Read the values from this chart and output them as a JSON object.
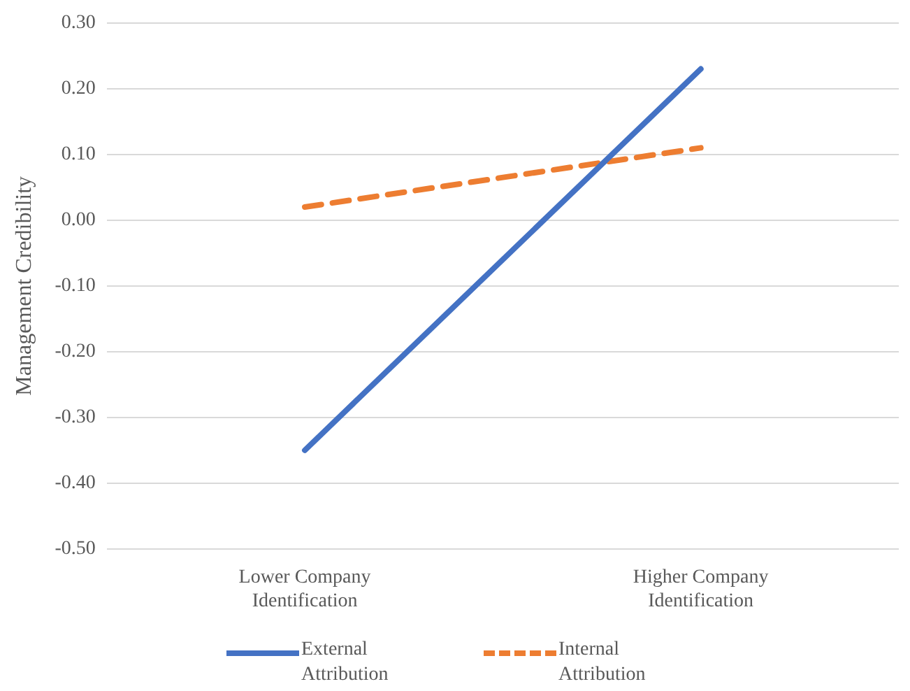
{
  "chart_data": {
    "type": "line",
    "ylabel": "Management Credibility",
    "categories": [
      "Lower Company Identification",
      "Higher Company Identification"
    ],
    "series": [
      {
        "name": "External Attribution",
        "color": "#4472c4",
        "values": [
          -0.35,
          0.23
        ],
        "line_style": "solid"
      },
      {
        "name": "Internal Attribution",
        "color": "#ed7d31",
        "values": [
          0.02,
          0.11
        ],
        "line_style": "dashed"
      }
    ],
    "ylim": [
      -0.5,
      0.3
    ],
    "yticks": [
      {
        "value": -0.5,
        "label": "-0.50"
      },
      {
        "value": -0.4,
        "label": "-0.40"
      },
      {
        "value": -0.3,
        "label": "-0.30"
      },
      {
        "value": -0.2,
        "label": "-0.20"
      },
      {
        "value": -0.1,
        "label": "-0.10"
      },
      {
        "value": 0,
        "label": "0.00"
      },
      {
        "value": 0.1,
        "label": "0.10"
      },
      {
        "value": 0.2,
        "label": "0.20"
      },
      {
        "value": 0.3,
        "label": "0.30"
      }
    ],
    "grid": "y",
    "legend": "bottom",
    "marker": "none"
  }
}
